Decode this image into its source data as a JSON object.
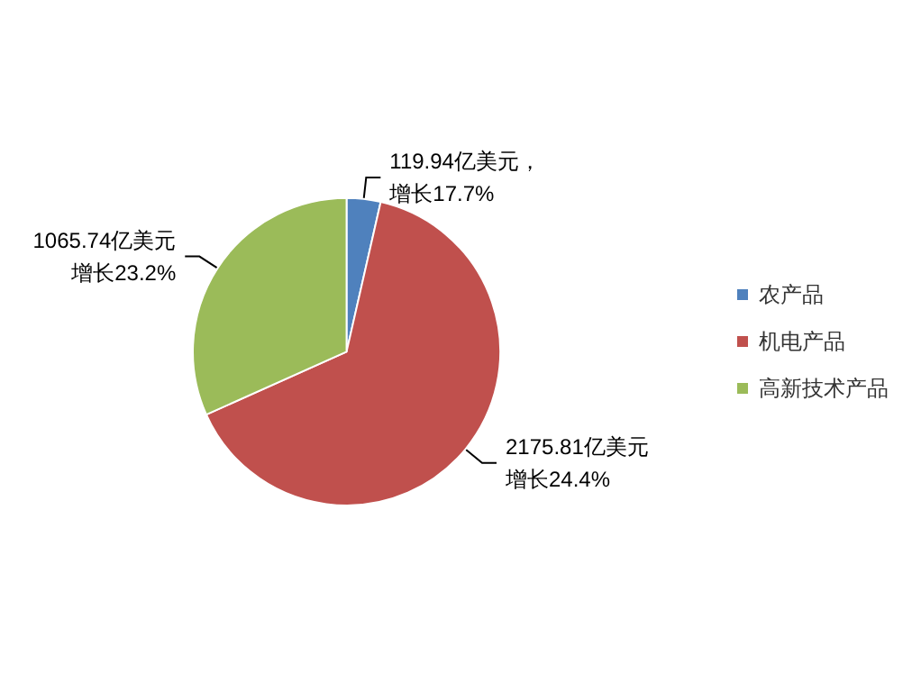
{
  "chart_data": {
    "type": "pie",
    "categories": [
      "农产品",
      "机电产品",
      "高新技术产品"
    ],
    "values": [
      119.94,
      2175.81,
      1065.74
    ],
    "colors": [
      "#4f81bd",
      "#c0504d",
      "#9bbb59"
    ],
    "value_labels": [
      "119.94亿美元，增长17.7%",
      "2175.81亿美元增长24.4%",
      "1065.74亿美元增长23.2%"
    ],
    "legend": "right"
  }
}
